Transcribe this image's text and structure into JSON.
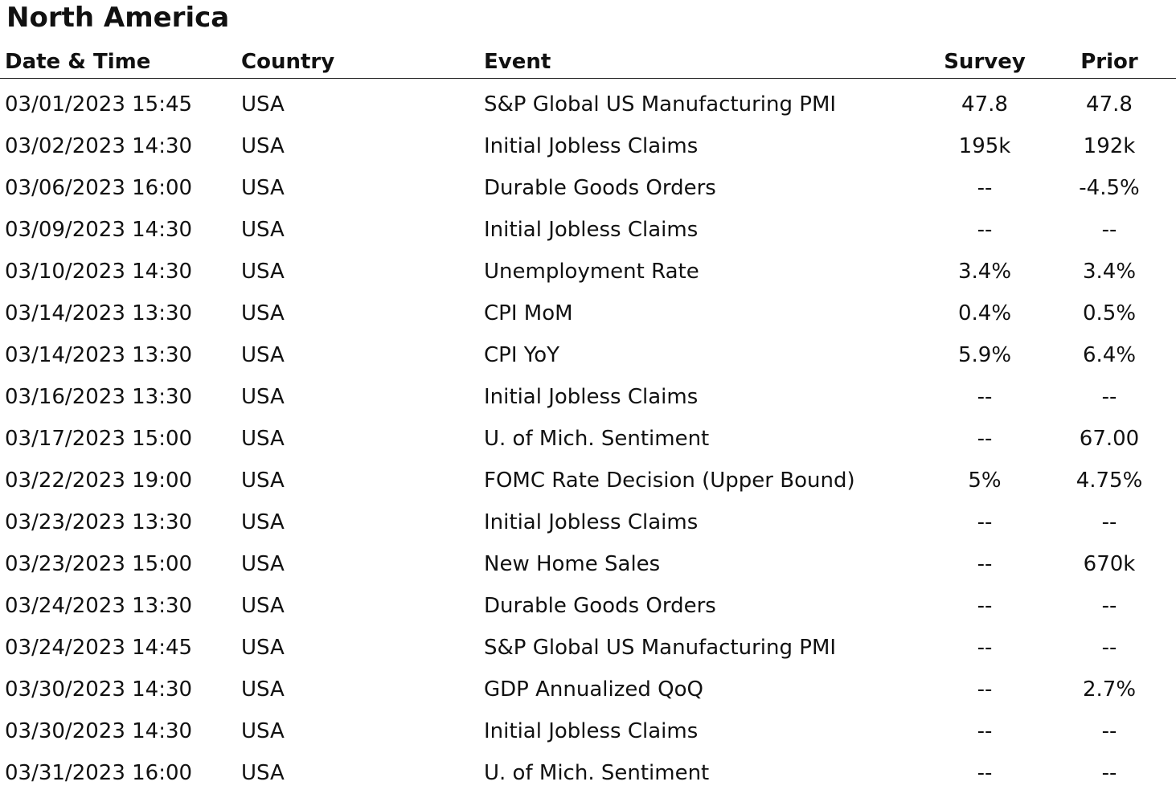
{
  "title": "North America",
  "columns": {
    "date_time": "Date & Time",
    "country": "Country",
    "event": "Event",
    "survey": "Survey",
    "prior": "Prior"
  },
  "rows": [
    {
      "date_time": "03/01/2023 15:45",
      "country": "USA",
      "event": "S&P Global US Manufacturing PMI",
      "survey": "47.8",
      "prior": "47.8"
    },
    {
      "date_time": "03/02/2023 14:30",
      "country": "USA",
      "event": "Initial Jobless Claims",
      "survey": "195k",
      "prior": "192k"
    },
    {
      "date_time": "03/06/2023 16:00",
      "country": "USA",
      "event": "Durable Goods Orders",
      "survey": "--",
      "prior": "-4.5%"
    },
    {
      "date_time": "03/09/2023 14:30",
      "country": "USA",
      "event": "Initial Jobless Claims",
      "survey": "--",
      "prior": "--"
    },
    {
      "date_time": "03/10/2023 14:30",
      "country": "USA",
      "event": "Unemployment Rate",
      "survey": "3.4%",
      "prior": "3.4%"
    },
    {
      "date_time": "03/14/2023 13:30",
      "country": "USA",
      "event": "CPI MoM",
      "survey": "0.4%",
      "prior": "0.5%"
    },
    {
      "date_time": "03/14/2023 13:30",
      "country": "USA",
      "event": "CPI YoY",
      "survey": "5.9%",
      "prior": "6.4%"
    },
    {
      "date_time": "03/16/2023 13:30",
      "country": "USA",
      "event": "Initial Jobless Claims",
      "survey": "--",
      "prior": "--"
    },
    {
      "date_time": "03/17/2023 15:00",
      "country": "USA",
      "event": "U. of Mich. Sentiment",
      "survey": "--",
      "prior": "67.00"
    },
    {
      "date_time": "03/22/2023 19:00",
      "country": "USA",
      "event": "FOMC Rate Decision (Upper Bound)",
      "survey": "5%",
      "prior": "4.75%"
    },
    {
      "date_time": "03/23/2023 13:30",
      "country": "USA",
      "event": "Initial Jobless Claims",
      "survey": "--",
      "prior": "--"
    },
    {
      "date_time": "03/23/2023 15:00",
      "country": "USA",
      "event": "New Home Sales",
      "survey": "--",
      "prior": "670k"
    },
    {
      "date_time": "03/24/2023 13:30",
      "country": "USA",
      "event": "Durable Goods Orders",
      "survey": "--",
      "prior": "--"
    },
    {
      "date_time": "03/24/2023 14:45",
      "country": "USA",
      "event": "S&P Global US Manufacturing PMI",
      "survey": "--",
      "prior": "--"
    },
    {
      "date_time": "03/30/2023 14:30",
      "country": "USA",
      "event": "GDP Annualized QoQ",
      "survey": "--",
      "prior": "2.7%"
    },
    {
      "date_time": "03/30/2023 14:30",
      "country": "USA",
      "event": "Initial Jobless Claims",
      "survey": "--",
      "prior": "--"
    },
    {
      "date_time": "03/31/2023 16:00",
      "country": "USA",
      "event": "U. of Mich. Sentiment",
      "survey": "--",
      "prior": "--"
    }
  ]
}
